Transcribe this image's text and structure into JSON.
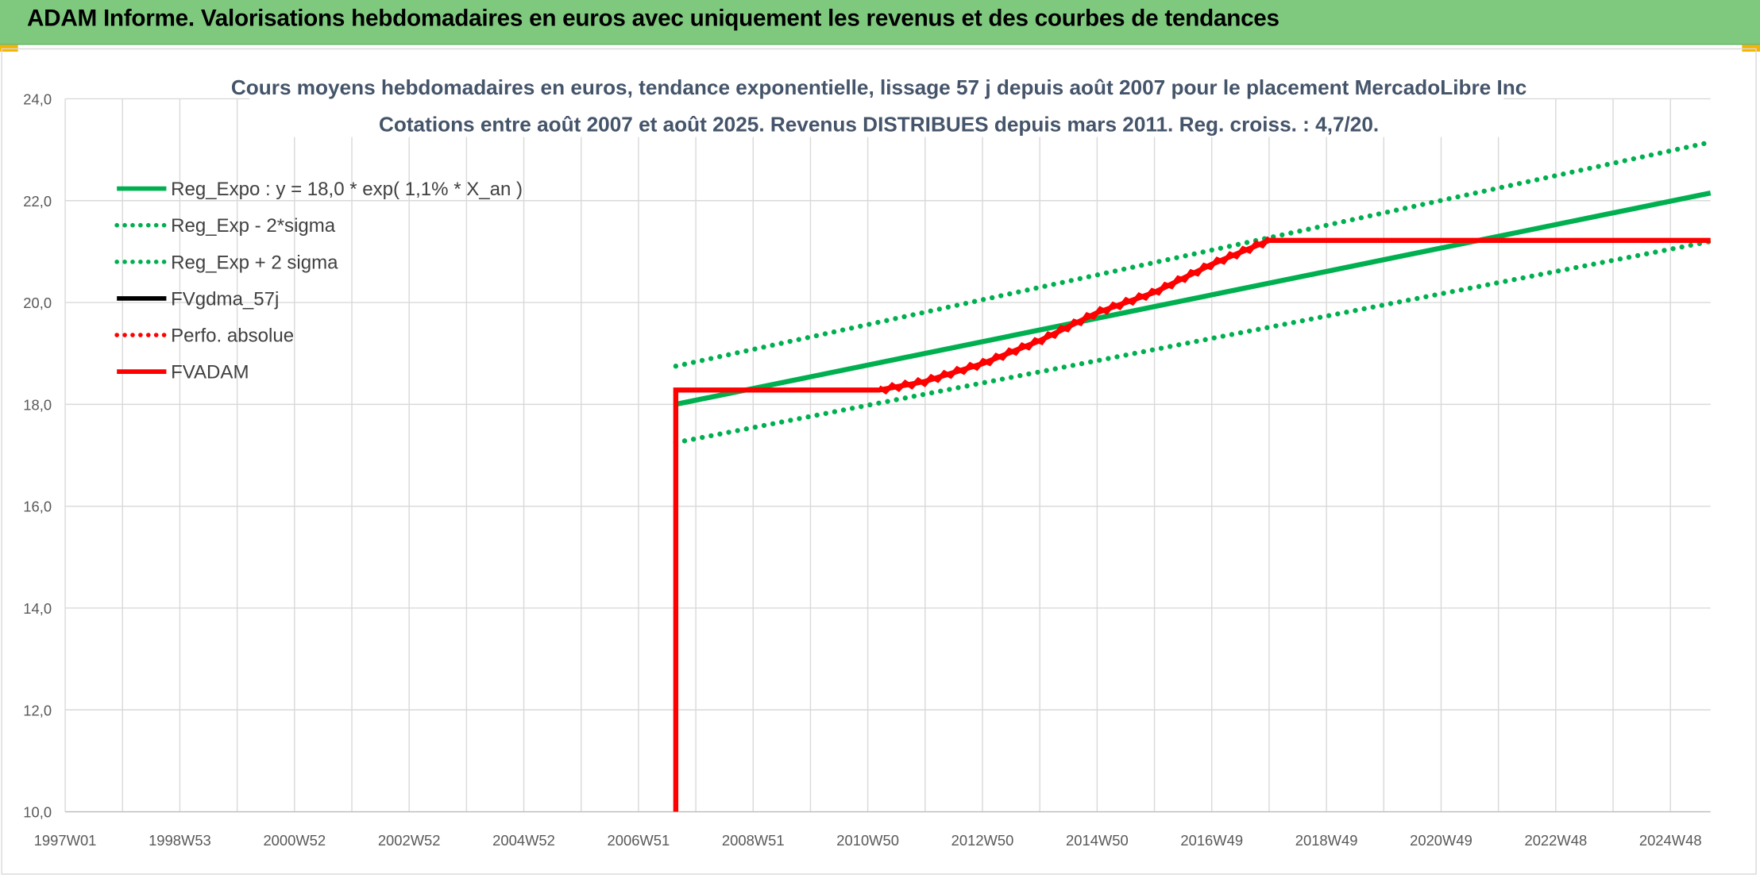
{
  "header": {
    "title": "ADAM Informe. Valorisations hebdomadaires en euros avec uniquement les revenus et des courbes de tendances"
  },
  "colors": {
    "banner": "#7fc97f",
    "trend_green": "#00b050",
    "adam_red": "#ff0000",
    "fvgdma_black": "#000000",
    "perfo_red": "#ff0000",
    "title_text": "#44546a",
    "gridline": "#d9d9d9"
  },
  "chart_data": {
    "type": "line",
    "title": "Cours moyens hebdomadaires en euros, tendance exponentielle, lissage 57 j depuis août 2007 pour le placement MercadoLibre Inc",
    "subtitle": "Cotations entre août 2007 et août 2025. Revenus DISTRIBUES depuis mars 2011. Reg. croiss. : 4,7/20.",
    "xlabel": "",
    "ylabel": "",
    "x_tick_labels": [
      "1997W01",
      "1998W53",
      "2000W52",
      "2002W52",
      "2004W52",
      "2006W51",
      "2008W51",
      "2010W50",
      "2012W50",
      "2014W50",
      "2016W49",
      "2018W49",
      "2020W49",
      "2022W48",
      "2024W48"
    ],
    "xlim": [
      1997.0,
      2025.7
    ],
    "ylim": [
      10.0,
      24.0
    ],
    "y_ticks": [
      "10,0",
      "12,0",
      "14,0",
      "16,0",
      "18,0",
      "20,0",
      "22,0",
      "24,0"
    ],
    "grid": true,
    "legend_position": "top-left",
    "series": [
      {
        "name": "Reg_Expo : y = 18,0 * exp( 1,1% *  X_an )",
        "style": "solid",
        "color": "#00b050",
        "x": [
          2007.65,
          2025.7
        ],
        "y": [
          18.0,
          22.15
        ]
      },
      {
        "name": "Reg_Exp - 2*sigma",
        "style": "dotted",
        "color": "#00b050",
        "x": [
          2007.65,
          2025.7
        ],
        "y": [
          17.25,
          21.2
        ]
      },
      {
        "name": "Reg_Exp + 2 sigma",
        "style": "dotted",
        "color": "#00b050",
        "x": [
          2007.65,
          2025.7
        ],
        "y": [
          18.75,
          23.15
        ]
      },
      {
        "name": "FVgdma_57j",
        "style": "solid",
        "color": "#000000",
        "x": [],
        "y": []
      },
      {
        "name": "Perfo. absolue",
        "style": "dotted",
        "color": "#ff0000",
        "x": [],
        "y": []
      },
      {
        "name": "FVADAM",
        "style": "solid",
        "color": "#ff0000",
        "x": [
          2007.65,
          2007.65,
          2011.2,
          2012.0,
          2013.0,
          2014.0,
          2015.0,
          2016.0,
          2017.0,
          2018.0,
          2025.7
        ],
        "y": [
          10.0,
          18.28,
          18.28,
          18.45,
          18.8,
          19.25,
          19.8,
          20.2,
          20.75,
          21.22,
          21.22
        ]
      }
    ]
  }
}
